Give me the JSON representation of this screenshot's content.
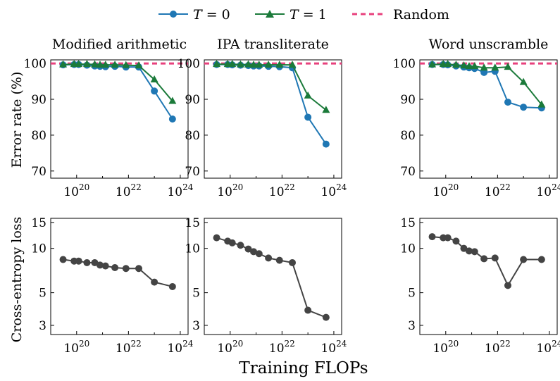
{
  "legend": {
    "items": [
      {
        "label_var": "T",
        "label_eq": " = 0",
        "color": "#1f77b4",
        "marker": "circle"
      },
      {
        "label_var": "T",
        "label_eq": " = 1",
        "color": "#1b7a3a",
        "marker": "triangle"
      },
      {
        "label": "Random",
        "color": "#e8417d",
        "style": "dashed"
      }
    ]
  },
  "figure": {
    "xlabel": "Training FLOPs",
    "ylabel_top": "Error rate (%)",
    "ylabel_bottom": "Cross-entropy loss"
  },
  "colors": {
    "t0": "#1f77b4",
    "t1": "#1b7a3a",
    "random": "#e8417d",
    "loss": "#444444"
  },
  "chart_data": [
    {
      "type": "line",
      "title": "Modified arithmetic",
      "row": "error",
      "xscale": "log",
      "xlim": [
        1e+19,
        2e+24
      ],
      "ylim": [
        68,
        101
      ],
      "xticks": [
        "10^20",
        "10^22",
        "10^24"
      ],
      "yticks": [
        70,
        80,
        90,
        100
      ],
      "random_baseline": 100,
      "series": [
        {
          "name": "T = 0",
          "x": [
            3e+19,
            8e+19,
            1.2e+20,
            2.5e+20,
            5e+20,
            8e+20,
            1.3e+21,
            3e+21,
            8e+21,
            2.5e+22,
            1e+23,
            5e+23
          ],
          "y": [
            99.6,
            99.7,
            99.7,
            99.5,
            99.3,
            99.2,
            99.1,
            99.2,
            99.0,
            99.0,
            92.3,
            84.5
          ]
        },
        {
          "name": "T = 1",
          "x": [
            3e+19,
            8e+19,
            1.2e+20,
            2.5e+20,
            5e+20,
            8e+20,
            1.3e+21,
            3e+21,
            8e+21,
            2.5e+22,
            1e+23,
            5e+23
          ],
          "y": [
            99.7,
            99.8,
            99.8,
            99.8,
            99.7,
            99.6,
            99.6,
            99.6,
            99.5,
            99.4,
            95.5,
            89.5
          ]
        }
      ]
    },
    {
      "type": "line",
      "title": "IPA transliterate",
      "row": "error",
      "xscale": "log",
      "xlim": [
        1e+19,
        2e+24
      ],
      "ylim": [
        68,
        101
      ],
      "xticks": [
        "10^20",
        "10^22",
        "10^24"
      ],
      "yticks": [
        70,
        80,
        90,
        100
      ],
      "random_baseline": 100,
      "series": [
        {
          "name": "T = 0",
          "x": [
            3e+19,
            8e+19,
            1.2e+20,
            2.5e+20,
            5e+20,
            8e+20,
            1.3e+21,
            3e+21,
            8e+21,
            2.5e+22,
            1e+23,
            5e+23
          ],
          "y": [
            99.7,
            99.7,
            99.6,
            99.5,
            99.4,
            99.3,
            99.3,
            99.2,
            99.1,
            98.8,
            85.0,
            77.5
          ]
        },
        {
          "name": "T = 1",
          "x": [
            3e+19,
            8e+19,
            1.2e+20,
            2.5e+20,
            5e+20,
            8e+20,
            1.3e+21,
            3e+21,
            8e+21,
            2.5e+22,
            1e+23,
            5e+23
          ],
          "y": [
            99.8,
            99.8,
            99.8,
            99.7,
            99.7,
            99.6,
            99.6,
            99.6,
            99.6,
            99.6,
            91.0,
            87.0
          ]
        }
      ]
    },
    {
      "type": "line",
      "title": "Word unscramble",
      "row": "error",
      "xscale": "log",
      "xlim": [
        1e+19,
        2e+24
      ],
      "ylim": [
        68,
        101
      ],
      "xticks": [
        "10^20",
        "10^22",
        "10^24"
      ],
      "yticks": [
        70,
        80,
        90,
        100
      ],
      "random_baseline": 100,
      "series": [
        {
          "name": "T = 0",
          "x": [
            3e+19,
            8e+19,
            1.2e+20,
            2.5e+20,
            5e+20,
            8e+20,
            1.3e+21,
            3e+21,
            8e+21,
            2.5e+22,
            1e+23,
            5e+23
          ],
          "y": [
            99.7,
            99.7,
            99.6,
            99.3,
            99.0,
            98.8,
            98.6,
            97.5,
            97.8,
            89.2,
            87.8,
            87.6
          ]
        },
        {
          "name": "T = 1",
          "x": [
            3e+19,
            8e+19,
            1.2e+20,
            2.5e+20,
            5e+20,
            8e+20,
            1.3e+21,
            3e+21,
            8e+21,
            2.5e+22,
            1e+23,
            5e+23
          ],
          "y": [
            99.7,
            99.8,
            99.8,
            99.6,
            99.4,
            99.2,
            99.2,
            98.8,
            98.8,
            99.0,
            94.8,
            88.5
          ]
        }
      ]
    },
    {
      "type": "line",
      "title": "",
      "row": "loss",
      "xscale": "log",
      "yscale": "log",
      "xlim": [
        1e+19,
        2e+24
      ],
      "ylim": [
        2.6,
        16
      ],
      "xticks": [
        "10^20",
        "10^22",
        "10^24"
      ],
      "yticks": [
        3,
        5,
        10,
        15
      ],
      "series": [
        {
          "name": "",
          "x": [
            3e+19,
            8e+19,
            1.2e+20,
            2.5e+20,
            5e+20,
            8e+20,
            1.3e+21,
            3e+21,
            8e+21,
            2.5e+22,
            1e+23,
            5e+23
          ],
          "y": [
            8.4,
            8.2,
            8.2,
            8.0,
            8.0,
            7.7,
            7.6,
            7.4,
            7.3,
            7.3,
            5.9,
            5.5
          ]
        }
      ]
    },
    {
      "type": "line",
      "title": "",
      "row": "loss",
      "xscale": "log",
      "yscale": "log",
      "xlim": [
        1e+19,
        2e+24
      ],
      "ylim": [
        2.6,
        16
      ],
      "xticks": [
        "10^20",
        "10^22",
        "10^24"
      ],
      "yticks": [
        3,
        5,
        10,
        15
      ],
      "series": [
        {
          "name": "",
          "x": [
            3e+19,
            8e+19,
            1.2e+20,
            2.5e+20,
            5e+20,
            8e+20,
            1.3e+21,
            3e+21,
            8e+21,
            2.5e+22,
            1e+23,
            5e+23
          ],
          "y": [
            11.8,
            11.2,
            10.9,
            10.5,
            9.9,
            9.5,
            9.2,
            8.6,
            8.3,
            8.0,
            3.8,
            3.4
          ]
        }
      ]
    },
    {
      "type": "line",
      "title": "",
      "row": "loss",
      "xscale": "log",
      "yscale": "log",
      "xlim": [
        1e+19,
        2e+24
      ],
      "ylim": [
        2.6,
        16
      ],
      "xticks": [
        "10^20",
        "10^22",
        "10^24"
      ],
      "yticks": [
        3,
        5,
        10,
        15
      ],
      "series": [
        {
          "name": "",
          "x": [
            3e+19,
            8e+19,
            1.2e+20,
            2.5e+20,
            5e+20,
            8e+20,
            1.3e+21,
            3e+21,
            8e+21,
            2.5e+22,
            1e+23,
            5e+23
          ],
          "y": [
            12.0,
            11.8,
            11.8,
            11.2,
            10.0,
            9.6,
            9.5,
            8.5,
            8.6,
            5.6,
            8.4,
            8.4
          ]
        }
      ]
    }
  ]
}
